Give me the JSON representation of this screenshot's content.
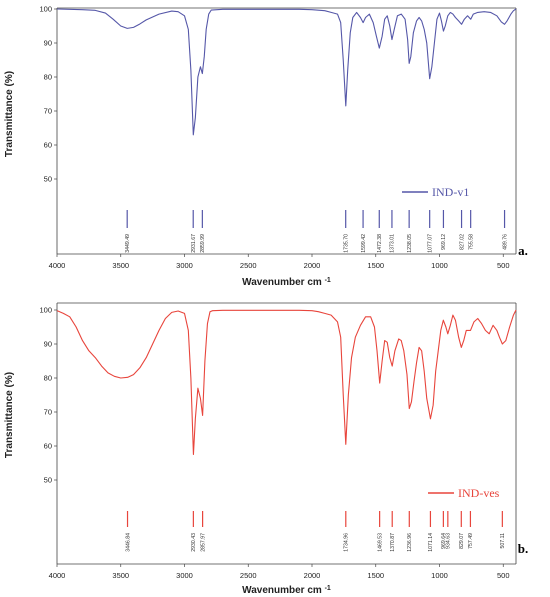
{
  "chart_data": [
    {
      "type": "line",
      "panel_label": "a.",
      "legend": "IND-v1",
      "color": "#5557a8",
      "xlabel": "Wavenumber cm",
      "xlabel_sup": "-1",
      "ylabel": "Transmittance (%)",
      "xlim": [
        4000,
        400
      ],
      "ylim": [
        40,
        100
      ],
      "x_ticks": [
        4000,
        3500,
        3000,
        2500,
        2000,
        1500,
        1000,
        500
      ],
      "y_ticks": [
        50,
        60,
        70,
        80,
        90,
        100
      ],
      "peak_labels": [
        "3449.49",
        "2931.67",
        "2859.99",
        "1735.70",
        "1599.42",
        "1472.38",
        "1373.01",
        "1238.05",
        "1077.07",
        "969.12",
        "827.02",
        "755.58",
        "489.76"
      ],
      "peak_positions": [
        3449.49,
        2931.67,
        2859.99,
        1735.7,
        1599.42,
        1472.38,
        1373.01,
        1238.05,
        1077.07,
        969.12,
        827.02,
        755.58,
        489.76
      ],
      "x": [
        4000,
        3800,
        3700,
        3620,
        3560,
        3500,
        3449,
        3400,
        3350,
        3300,
        3200,
        3100,
        3050,
        3000,
        2970,
        2950,
        2931,
        2915,
        2895,
        2875,
        2860,
        2845,
        2830,
        2810,
        2790,
        2700,
        2500,
        2300,
        2100,
        2000,
        1900,
        1850,
        1800,
        1775,
        1755,
        1735,
        1720,
        1700,
        1680,
        1650,
        1620,
        1599,
        1580,
        1550,
        1520,
        1495,
        1472,
        1450,
        1430,
        1410,
        1390,
        1373,
        1355,
        1330,
        1300,
        1270,
        1250,
        1238,
        1225,
        1205,
        1180,
        1160,
        1140,
        1120,
        1100,
        1077,
        1060,
        1040,
        1020,
        1000,
        985,
        969,
        955,
        935,
        915,
        895,
        875,
        850,
        827,
        805,
        780,
        755,
        735,
        700,
        650,
        600,
        550,
        515,
        490,
        470,
        440,
        420,
        400
      ],
      "y": [
        100,
        99.8,
        99.6,
        98.8,
        97,
        95,
        94.3,
        94.6,
        95.6,
        96.8,
        98.5,
        99.4,
        99.2,
        98,
        94,
        82,
        63,
        68,
        80,
        83,
        81,
        86,
        94,
        98.5,
        99.7,
        99.9,
        99.9,
        99.9,
        99.9,
        99.8,
        99.5,
        99,
        98.5,
        96,
        85,
        71.5,
        82,
        93,
        97.5,
        99,
        97.5,
        96,
        97.5,
        98.5,
        96,
        92,
        88.5,
        92,
        97,
        98,
        95,
        91,
        94,
        98,
        98.5,
        97,
        91,
        84,
        86,
        93,
        96.5,
        97.5,
        96.5,
        94,
        90,
        79.5,
        83,
        90,
        97,
        98.8,
        96.5,
        93.5,
        95,
        98,
        99,
        98.5,
        97.5,
        96.5,
        95.5,
        97,
        98,
        97,
        98.5,
        99,
        99.2,
        99,
        98,
        96.2,
        95.5,
        96.5,
        98.5,
        99.5,
        100
      ]
    },
    {
      "type": "line",
      "panel_label": "b.",
      "legend": "IND-ves",
      "color": "#e8453c",
      "xlabel": "Wavenumber cm",
      "xlabel_sup": "-1",
      "ylabel": "Transmittance (%)",
      "xlim": [
        4000,
        400
      ],
      "ylim": [
        40,
        100
      ],
      "x_ticks": [
        4000,
        3500,
        3000,
        2500,
        2000,
        1500,
        1000,
        500
      ],
      "y_ticks": [
        50,
        60,
        70,
        80,
        90,
        100
      ],
      "peak_labels": [
        "3446.84",
        "2930.43",
        "2857.97",
        "1734.96",
        "1469.53",
        "1370.87",
        "1236.96",
        "1071.14",
        "969.64",
        "934.63",
        "829.07",
        "757.49",
        "507.11"
      ],
      "peak_positions": [
        3446.84,
        2930.43,
        2857.97,
        1734.96,
        1469.53,
        1370.87,
        1236.96,
        1071.14,
        969.64,
        934.63,
        829.07,
        757.49,
        507.11
      ],
      "x": [
        4000,
        3950,
        3900,
        3850,
        3800,
        3750,
        3700,
        3650,
        3600,
        3550,
        3500,
        3446,
        3400,
        3350,
        3300,
        3250,
        3200,
        3150,
        3100,
        3050,
        3000,
        2970,
        2950,
        2930,
        2915,
        2895,
        2875,
        2858,
        2840,
        2820,
        2800,
        2780,
        2700,
        2500,
        2300,
        2100,
        2000,
        1950,
        1900,
        1850,
        1800,
        1775,
        1755,
        1735,
        1715,
        1690,
        1660,
        1620,
        1580,
        1540,
        1510,
        1490,
        1469,
        1450,
        1430,
        1410,
        1390,
        1371,
        1350,
        1320,
        1300,
        1280,
        1255,
        1237,
        1220,
        1200,
        1180,
        1160,
        1140,
        1120,
        1100,
        1071,
        1050,
        1030,
        1010,
        990,
        970,
        950,
        935,
        915,
        895,
        875,
        850,
        829,
        810,
        790,
        757,
        730,
        700,
        670,
        640,
        610,
        580,
        550,
        530,
        507,
        480,
        450,
        420,
        400
      ],
      "y": [
        99.8,
        99,
        98,
        95,
        91,
        88,
        86,
        83.5,
        81.5,
        80.5,
        80,
        80.2,
        81,
        83,
        86,
        90,
        94,
        97.5,
        99.3,
        99.7,
        99,
        94,
        80,
        57.5,
        68,
        77,
        74,
        69,
        85,
        96,
        99.5,
        99.8,
        99.9,
        99.9,
        99.9,
        99.9,
        99.8,
        99.5,
        99,
        98.5,
        96.5,
        92,
        75,
        60.5,
        75,
        86,
        92,
        95.5,
        98,
        98,
        95,
        88,
        78.5,
        85,
        91,
        90.5,
        86,
        83.5,
        88,
        91.5,
        91,
        88,
        81,
        71,
        73,
        79,
        84.5,
        89,
        88,
        82,
        74,
        68,
        72,
        82,
        88,
        94,
        97,
        95,
        93,
        95.5,
        98.5,
        97,
        92,
        89,
        91,
        94,
        94,
        96.5,
        97.5,
        96,
        94,
        93,
        95.5,
        94,
        92,
        90,
        91,
        95,
        98.5,
        100
      ]
    }
  ]
}
